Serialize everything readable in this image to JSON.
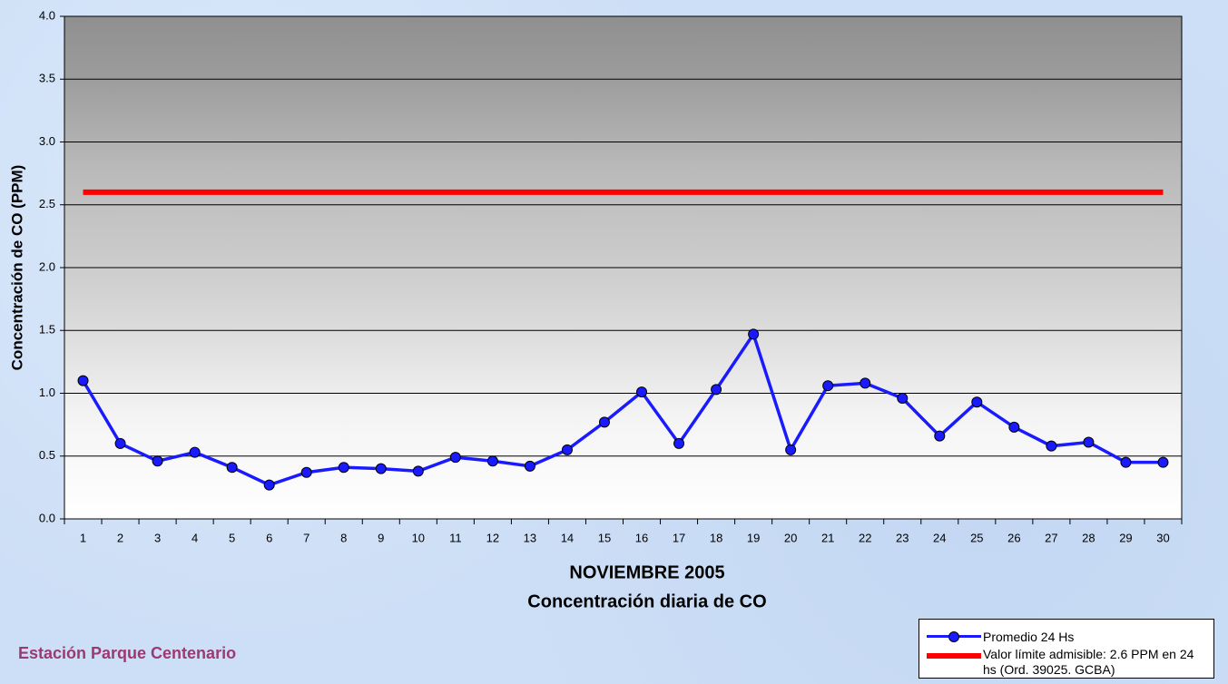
{
  "chart_data": {
    "type": "line",
    "title": "NOVIEMBRE 2005",
    "subtitle": "Concentración diaria de CO",
    "y_label": "Concentración de CO (PPM)",
    "footer": "Estación Parque Centenario",
    "categories": [
      "1",
      "2",
      "3",
      "4",
      "5",
      "6",
      "7",
      "8",
      "9",
      "10",
      "11",
      "12",
      "13",
      "14",
      "15",
      "16",
      "17",
      "18",
      "19",
      "20",
      "21",
      "22",
      "23",
      "24",
      "25",
      "26",
      "27",
      "28",
      "29",
      "30"
    ],
    "series": [
      {
        "name": "Promedio 24 Hs",
        "color": "#1a1aff",
        "marker": true,
        "values": [
          1.1,
          0.6,
          0.46,
          0.53,
          0.41,
          0.27,
          0.37,
          0.41,
          0.4,
          0.38,
          0.49,
          0.46,
          0.42,
          0.55,
          0.77,
          1.01,
          0.6,
          1.03,
          1.47,
          0.55,
          1.06,
          1.08,
          0.96,
          0.66,
          0.93,
          0.73,
          0.58,
          0.61,
          0.45,
          0.45
        ]
      },
      {
        "name": "Valor límite admisible: 2.6 PPM en 24 hs (Ord. 39025. GCBA)",
        "color": "#ff0000",
        "marker": false,
        "values": [
          2.6,
          2.6,
          2.6,
          2.6,
          2.6,
          2.6,
          2.6,
          2.6,
          2.6,
          2.6,
          2.6,
          2.6,
          2.6,
          2.6,
          2.6,
          2.6,
          2.6,
          2.6,
          2.6,
          2.6,
          2.6,
          2.6,
          2.6,
          2.6,
          2.6,
          2.6,
          2.6,
          2.6,
          2.6,
          2.6
        ]
      }
    ],
    "ylim": [
      0,
      4
    ],
    "yticks": [
      {
        "value": 0,
        "label": "0.0"
      },
      0.5,
      {
        "value": 1,
        "label": "1.0"
      },
      1.5,
      {
        "value": 2,
        "label": "2.0"
      },
      2.5,
      {
        "value": 3,
        "label": "3.0"
      },
      3.5,
      {
        "value": 4,
        "label": "4.0"
      }
    ],
    "grid": true
  }
}
